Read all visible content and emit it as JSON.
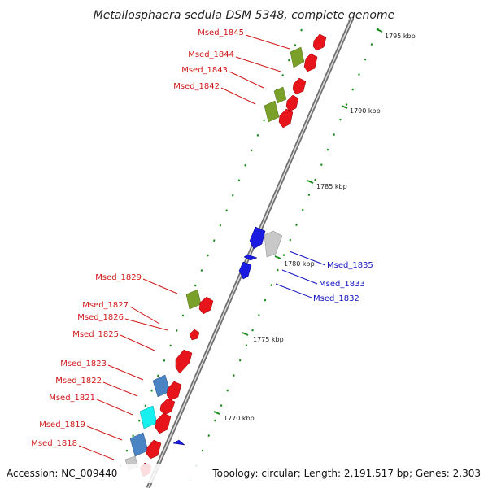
{
  "title": "Metallosphaera sedula DSM 5348, complete genome",
  "footer": {
    "accession": "Accession: NC_009440",
    "summary": "Topology: circular; Length: 2,191,517 bp; Genes: 2,303"
  },
  "colors": {
    "forward_label": "#d01818",
    "reverse_label": "#1010c0",
    "backbone": "#9a9a9a",
    "ticks": "#1a8a1a",
    "cds_red": "#e8141c",
    "cds_olive": "#7aa02a",
    "cds_steelblue": "#4a84c4",
    "cds_cyan": "#18f0f0",
    "cds_grey": "#c8c8c8",
    "cds_blue": "#1a1ae0"
  },
  "ticks": [
    {
      "label": "1795 kbp"
    },
    {
      "label": "1790 kbp"
    },
    {
      "label": "1785 kbp"
    },
    {
      "label": "1780 kbp"
    },
    {
      "label": "1775 kbp"
    },
    {
      "label": "1770 kbp"
    }
  ],
  "forward_labels": [
    {
      "text": "Msed_1845"
    },
    {
      "text": "Msed_1844"
    },
    {
      "text": "Msed_1843"
    },
    {
      "text": "Msed_1842"
    },
    {
      "text": "Msed_1829"
    },
    {
      "text": "Msed_1827"
    },
    {
      "text": "Msed_1826"
    },
    {
      "text": "Msed_1825"
    },
    {
      "text": "Msed_1823"
    },
    {
      "text": "Msed_1822"
    },
    {
      "text": "Msed_1821"
    },
    {
      "text": "Msed_1819"
    },
    {
      "text": "Msed_1818"
    }
  ],
  "reverse_labels": [
    {
      "text": "Msed_1835"
    },
    {
      "text": "Msed_1833"
    },
    {
      "text": "Msed_1832"
    }
  ]
}
